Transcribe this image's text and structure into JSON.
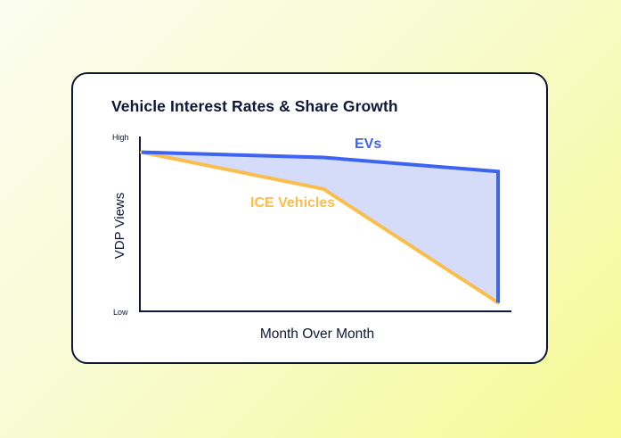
{
  "chart_data": {
    "type": "area",
    "title": "Vehicle Interest Rates & Share Growth",
    "xlabel": "Month Over Month",
    "ylabel": "VDP Views",
    "y_tick_labels": [
      "High",
      "Low"
    ],
    "ylim": [
      0,
      100
    ],
    "xlim": [
      0,
      100
    ],
    "grid": false,
    "series": [
      {
        "name": "EVs",
        "color": "#3d63f2",
        "x": [
          0,
          51,
          100
        ],
        "y": [
          91,
          88,
          80
        ]
      },
      {
        "name": "ICE Vehicles",
        "color": "#fbbd4b",
        "x": [
          0,
          51,
          100
        ],
        "y": [
          91,
          70,
          5
        ]
      }
    ],
    "fill_between": {
      "series": [
        "EVs",
        "ICE Vehicles"
      ],
      "color": "#d5dcfa"
    }
  }
}
